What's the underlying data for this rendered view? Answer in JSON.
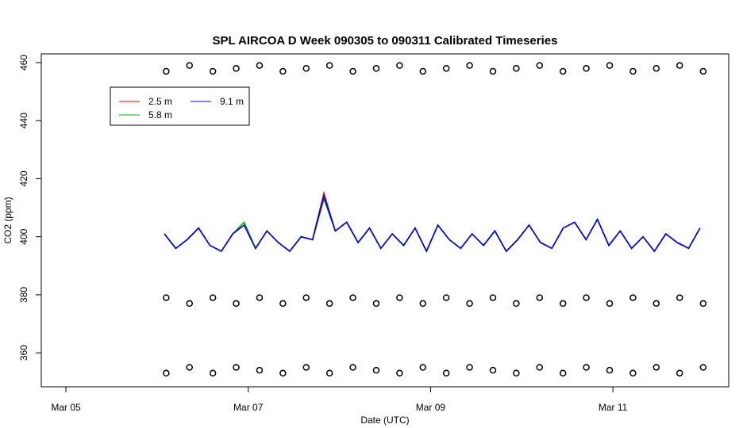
{
  "chart_data": {
    "type": "line",
    "title": "SPL AIRCOA D  Week 090305 to 090311  Calibrated Timeseries",
    "xlabel": "Date (UTC)",
    "ylabel": "CO2 (ppm)",
    "xlim": [
      -0.27,
      7.27
    ],
    "xticks": [
      {
        "value": 0,
        "label": "Mar 05"
      },
      {
        "value": 2,
        "label": "Mar 07"
      },
      {
        "value": 4,
        "label": "Mar 09"
      },
      {
        "value": 6,
        "label": "Mar 11"
      }
    ],
    "ylim": [
      348.3,
      463
    ],
    "yticks": [
      360,
      380,
      400,
      420,
      440,
      460
    ],
    "x": [
      1.08,
      1.205,
      1.33,
      1.455,
      1.58,
      1.705,
      1.83,
      1.955,
      2.08,
      2.205,
      2.33,
      2.455,
      2.58,
      2.705,
      2.83,
      2.955,
      3.08,
      3.205,
      3.33,
      3.455,
      3.58,
      3.705,
      3.83,
      3.955,
      4.08,
      4.205,
      4.33,
      4.455,
      4.58,
      4.705,
      4.83,
      4.955,
      5.08,
      5.205,
      5.33,
      5.455,
      5.58,
      5.705,
      5.83,
      5.955,
      6.08,
      6.205,
      6.33,
      6.455,
      6.58,
      6.705,
      6.83,
      6.955
    ],
    "series": [
      {
        "name": "2.5 m",
        "color": "#ff0000",
        "values": [
          401,
          396,
          399,
          403,
          397,
          395,
          401,
          404,
          396,
          402,
          398,
          395,
          400,
          399,
          415,
          402,
          405,
          398,
          403,
          396,
          401,
          397,
          403,
          395,
          404,
          399,
          396,
          401,
          397,
          402,
          395,
          399,
          404,
          398,
          396,
          403,
          405,
          399,
          406,
          397,
          402,
          396,
          400,
          395,
          401,
          398,
          396,
          403
        ]
      },
      {
        "name": "5.8 m",
        "color": "#00b000",
        "values": [
          401,
          396,
          399,
          403,
          397,
          395,
          401,
          405,
          396,
          402,
          398,
          395,
          400,
          399,
          413,
          402,
          405,
          398,
          403,
          396,
          401,
          397,
          403,
          395,
          404,
          399,
          396,
          401,
          397,
          402,
          395,
          399,
          404,
          398,
          396,
          403,
          405,
          399,
          406,
          397,
          402,
          396,
          400,
          395,
          401,
          398,
          396,
          403
        ]
      },
      {
        "name": "9.1 m",
        "color": "#0000ff",
        "values": [
          401,
          396,
          399,
          403,
          397,
          395,
          401,
          404,
          396,
          402,
          398,
          395,
          400,
          399,
          414,
          402,
          405,
          398,
          403,
          396,
          401,
          397,
          403,
          395,
          404,
          399,
          396,
          401,
          397,
          402,
          395,
          399,
          404,
          398,
          396,
          403,
          405,
          399,
          406,
          397,
          402,
          396,
          400,
          395,
          401,
          398,
          396,
          403
        ]
      }
    ],
    "points": {
      "color": "#000000",
      "x": [
        1.1,
        1.356,
        1.612,
        1.868,
        2.124,
        2.38,
        2.636,
        2.892,
        3.148,
        3.404,
        3.66,
        3.916,
        4.172,
        4.428,
        4.684,
        4.94,
        5.196,
        5.452,
        5.708,
        5.964,
        6.22,
        6.476,
        6.732,
        6.99
      ],
      "groups": [
        [
          457,
          459,
          457,
          458,
          459,
          457,
          458,
          459,
          457,
          458,
          459,
          457,
          458,
          459,
          457,
          458,
          459,
          457,
          458,
          459,
          457,
          458,
          459,
          457
        ],
        [
          379,
          377,
          379,
          377,
          379,
          377,
          379,
          377,
          379,
          377,
          379,
          377,
          379,
          377,
          379,
          377,
          379,
          377,
          379,
          377,
          379,
          377,
          379,
          377
        ],
        [
          353,
          355,
          353,
          355,
          354,
          353,
          355,
          353,
          355,
          354,
          353,
          355,
          353,
          355,
          354,
          353,
          355,
          353,
          355,
          354,
          353,
          355,
          353,
          355
        ]
      ]
    }
  }
}
